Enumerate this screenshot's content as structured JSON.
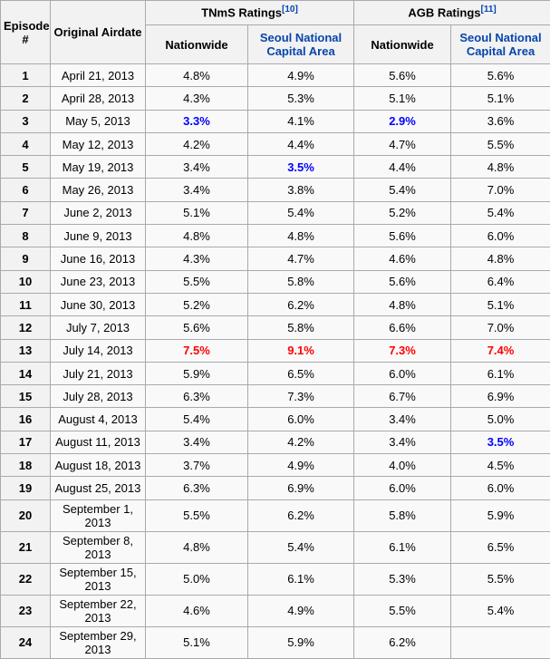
{
  "table": {
    "header": {
      "episode_label": "Episode #",
      "airdate_label": "Original Airdate",
      "tnms_label": "TNmS Ratings",
      "tnms_ref": "[10]",
      "agb_label": "AGB Ratings",
      "agb_ref": "[11]",
      "nationwide_label": "Nationwide",
      "seoul_label": "Seoul National Capital Area"
    },
    "colors": {
      "highest_value": "#ff0000",
      "lowest_value": "#0000ff",
      "link": "#0645ad",
      "header_bg": "#f2f2f2",
      "cell_bg": "#f9f9f9",
      "border": "#aaaaaa"
    },
    "rows": [
      {
        "ep": "1",
        "date": "April 21, 2013",
        "tnms_nationwide": {
          "v": "4.8%"
        },
        "tnms_seoul": {
          "v": "4.9%"
        },
        "agb_nationwide": {
          "v": "5.6%"
        },
        "agb_seoul": {
          "v": "5.6%"
        }
      },
      {
        "ep": "2",
        "date": "April 28, 2013",
        "tnms_nationwide": {
          "v": "4.3%"
        },
        "tnms_seoul": {
          "v": "5.3%"
        },
        "agb_nationwide": {
          "v": "5.1%"
        },
        "agb_seoul": {
          "v": "5.1%"
        }
      },
      {
        "ep": "3",
        "date": "May 5, 2013",
        "tnms_nationwide": {
          "v": "3.3%",
          "hl": "lowest"
        },
        "tnms_seoul": {
          "v": "4.1%"
        },
        "agb_nationwide": {
          "v": "2.9%",
          "hl": "lowest"
        },
        "agb_seoul": {
          "v": "3.6%"
        }
      },
      {
        "ep": "4",
        "date": "May 12, 2013",
        "tnms_nationwide": {
          "v": "4.2%"
        },
        "tnms_seoul": {
          "v": "4.4%"
        },
        "agb_nationwide": {
          "v": "4.7%"
        },
        "agb_seoul": {
          "v": "5.5%"
        }
      },
      {
        "ep": "5",
        "date": "May 19, 2013",
        "tnms_nationwide": {
          "v": "3.4%"
        },
        "tnms_seoul": {
          "v": "3.5%",
          "hl": "lowest"
        },
        "agb_nationwide": {
          "v": "4.4%"
        },
        "agb_seoul": {
          "v": "4.8%"
        }
      },
      {
        "ep": "6",
        "date": "May 26, 2013",
        "tnms_nationwide": {
          "v": "3.4%"
        },
        "tnms_seoul": {
          "v": "3.8%"
        },
        "agb_nationwide": {
          "v": "5.4%"
        },
        "agb_seoul": {
          "v": "7.0%"
        }
      },
      {
        "ep": "7",
        "date": "June 2, 2013",
        "tnms_nationwide": {
          "v": "5.1%"
        },
        "tnms_seoul": {
          "v": "5.4%"
        },
        "agb_nationwide": {
          "v": "5.2%"
        },
        "agb_seoul": {
          "v": "5.4%"
        }
      },
      {
        "ep": "8",
        "date": "June 9, 2013",
        "tnms_nationwide": {
          "v": "4.8%"
        },
        "tnms_seoul": {
          "v": "4.8%"
        },
        "agb_nationwide": {
          "v": "5.6%"
        },
        "agb_seoul": {
          "v": "6.0%"
        }
      },
      {
        "ep": "9",
        "date": "June 16, 2013",
        "tnms_nationwide": {
          "v": "4.3%"
        },
        "tnms_seoul": {
          "v": "4.7%"
        },
        "agb_nationwide": {
          "v": "4.6%"
        },
        "agb_seoul": {
          "v": "4.8%"
        }
      },
      {
        "ep": "10",
        "date": "June 23, 2013",
        "tnms_nationwide": {
          "v": "5.5%"
        },
        "tnms_seoul": {
          "v": "5.8%"
        },
        "agb_nationwide": {
          "v": "5.6%"
        },
        "agb_seoul": {
          "v": "6.4%"
        }
      },
      {
        "ep": "11",
        "date": "June 30, 2013",
        "tnms_nationwide": {
          "v": "5.2%"
        },
        "tnms_seoul": {
          "v": "6.2%"
        },
        "agb_nationwide": {
          "v": "4.8%"
        },
        "agb_seoul": {
          "v": "5.1%"
        }
      },
      {
        "ep": "12",
        "date": "July 7, 2013",
        "tnms_nationwide": {
          "v": "5.6%"
        },
        "tnms_seoul": {
          "v": "5.8%"
        },
        "agb_nationwide": {
          "v": "6.6%"
        },
        "agb_seoul": {
          "v": "7.0%"
        }
      },
      {
        "ep": "13",
        "date": "July 14, 2013",
        "tnms_nationwide": {
          "v": "7.5%",
          "hl": "highest"
        },
        "tnms_seoul": {
          "v": "9.1%",
          "hl": "highest"
        },
        "agb_nationwide": {
          "v": "7.3%",
          "hl": "highest"
        },
        "agb_seoul": {
          "v": "7.4%",
          "hl": "highest"
        }
      },
      {
        "ep": "14",
        "date": "July 21, 2013",
        "tnms_nationwide": {
          "v": "5.9%"
        },
        "tnms_seoul": {
          "v": "6.5%"
        },
        "agb_nationwide": {
          "v": "6.0%"
        },
        "agb_seoul": {
          "v": "6.1%"
        }
      },
      {
        "ep": "15",
        "date": "July 28, 2013",
        "tnms_nationwide": {
          "v": "6.3%"
        },
        "tnms_seoul": {
          "v": "7.3%"
        },
        "agb_nationwide": {
          "v": "6.7%"
        },
        "agb_seoul": {
          "v": "6.9%"
        }
      },
      {
        "ep": "16",
        "date": "August 4, 2013",
        "tnms_nationwide": {
          "v": "5.4%"
        },
        "tnms_seoul": {
          "v": "6.0%"
        },
        "agb_nationwide": {
          "v": "3.4%"
        },
        "agb_seoul": {
          "v": "5.0%"
        }
      },
      {
        "ep": "17",
        "date": "August 11, 2013",
        "tnms_nationwide": {
          "v": "3.4%"
        },
        "tnms_seoul": {
          "v": "4.2%"
        },
        "agb_nationwide": {
          "v": "3.4%"
        },
        "agb_seoul": {
          "v": "3.5%",
          "hl": "lowest"
        }
      },
      {
        "ep": "18",
        "date": "August 18, 2013",
        "tnms_nationwide": {
          "v": "3.7%"
        },
        "tnms_seoul": {
          "v": "4.9%"
        },
        "agb_nationwide": {
          "v": "4.0%"
        },
        "agb_seoul": {
          "v": "4.5%"
        }
      },
      {
        "ep": "19",
        "date": "August 25, 2013",
        "tnms_nationwide": {
          "v": "6.3%"
        },
        "tnms_seoul": {
          "v": "6.9%"
        },
        "agb_nationwide": {
          "v": "6.0%"
        },
        "agb_seoul": {
          "v": "6.0%"
        }
      },
      {
        "ep": "20",
        "date": "September 1, 2013",
        "tnms_nationwide": {
          "v": "5.5%"
        },
        "tnms_seoul": {
          "v": "6.2%"
        },
        "agb_nationwide": {
          "v": "5.8%"
        },
        "agb_seoul": {
          "v": "5.9%"
        }
      },
      {
        "ep": "21",
        "date": "September 8, 2013",
        "tnms_nationwide": {
          "v": "4.8%"
        },
        "tnms_seoul": {
          "v": "5.4%"
        },
        "agb_nationwide": {
          "v": "6.1%"
        },
        "agb_seoul": {
          "v": "6.5%"
        }
      },
      {
        "ep": "22",
        "date": "September 15, 2013",
        "tnms_nationwide": {
          "v": "5.0%"
        },
        "tnms_seoul": {
          "v": "6.1%"
        },
        "agb_nationwide": {
          "v": "5.3%"
        },
        "agb_seoul": {
          "v": "5.5%"
        }
      },
      {
        "ep": "23",
        "date": "September 22, 2013",
        "tnms_nationwide": {
          "v": "4.6%"
        },
        "tnms_seoul": {
          "v": "4.9%"
        },
        "agb_nationwide": {
          "v": "5.5%"
        },
        "agb_seoul": {
          "v": "5.4%"
        }
      },
      {
        "ep": "24",
        "date": "September 29, 2013",
        "tnms_nationwide": {
          "v": "5.1%"
        },
        "tnms_seoul": {
          "v": "5.9%"
        },
        "agb_nationwide": {
          "v": "6.2%"
        },
        "agb_seoul": {
          "v": ""
        }
      }
    ]
  }
}
